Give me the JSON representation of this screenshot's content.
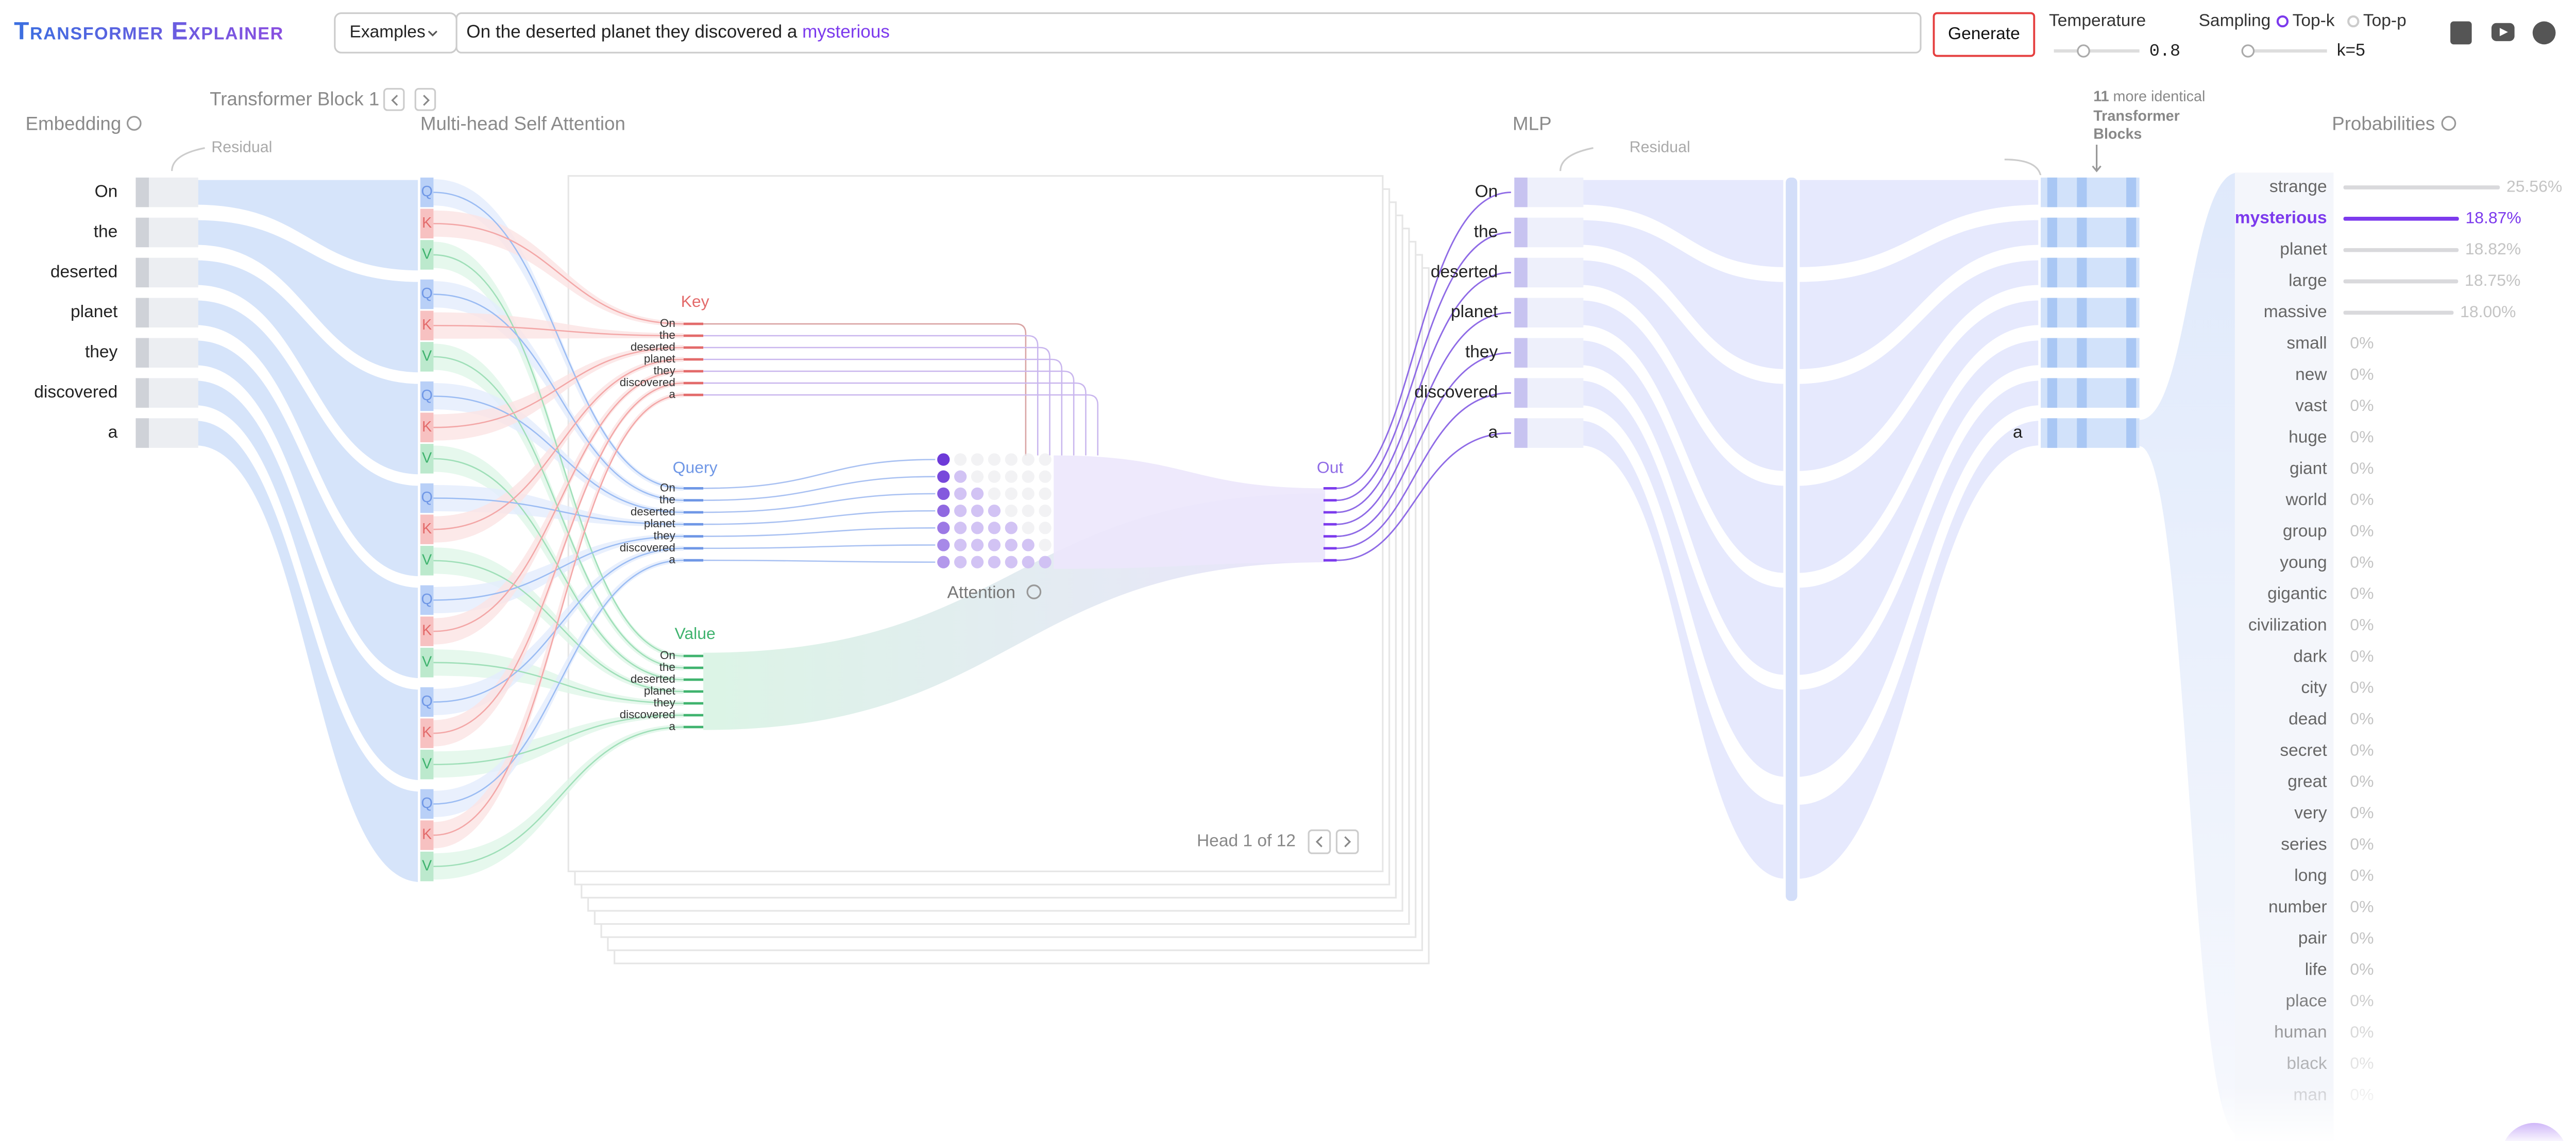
{
  "header": {
    "title": "Transformer Explainer",
    "examples": "Examples",
    "input": {
      "prompt": "On the deserted planet they discovered a",
      "generated": "mysterious"
    },
    "generate": "Generate",
    "temperature": {
      "label": "Temperature",
      "value": 0.8
    },
    "sampling": {
      "label": "Sampling",
      "options": [
        "Top-k",
        "Top-p"
      ],
      "k": "k=5"
    }
  },
  "embedding": {
    "title": "Embedding",
    "residual": "Residual",
    "tokens": [
      "On",
      "the",
      "deserted",
      "planet",
      "they",
      "discovered",
      "a"
    ]
  },
  "block": {
    "title": "Transformer Block 1"
  },
  "attention": {
    "title": "Multi-head Self Attention",
    "qkv": [
      "Q",
      "K",
      "V"
    ],
    "key": "Key",
    "query": "Query",
    "value": "Value",
    "out": "Out",
    "matrix": "Attention",
    "head": "Head 1 of 12"
  },
  "mlp": {
    "title": "MLP",
    "residual": "Residual"
  },
  "more_blocks": {
    "count": "11",
    "text": [
      "more identical",
      "Transformer",
      "Blocks"
    ]
  },
  "probabilities": {
    "title": "Probabilities",
    "tokens": [
      {
        "word": "strange",
        "value": 25.56,
        "label": "25.56%"
      },
      {
        "word": "mysterious",
        "value": 18.87,
        "label": "18.87%"
      },
      {
        "word": "planet",
        "value": 18.82,
        "label": "18.82%"
      },
      {
        "word": "large",
        "value": 18.75,
        "label": "18.75%"
      },
      {
        "word": "massive",
        "value": 18.0,
        "label": "18.00%"
      },
      {
        "word": "small",
        "value": 0,
        "label": "0%"
      },
      {
        "word": "new",
        "value": 0,
        "label": "0%"
      },
      {
        "word": "vast",
        "value": 0,
        "label": "0%"
      },
      {
        "word": "huge",
        "value": 0,
        "label": "0%"
      },
      {
        "word": "giant",
        "value": 0,
        "label": "0%"
      },
      {
        "word": "world",
        "value": 0,
        "label": "0%"
      },
      {
        "word": "group",
        "value": 0,
        "label": "0%"
      },
      {
        "word": "young",
        "value": 0,
        "label": "0%"
      },
      {
        "word": "gigantic",
        "value": 0,
        "label": "0%"
      },
      {
        "word": "civilization",
        "value": 0,
        "label": "0%"
      },
      {
        "word": "dark",
        "value": 0,
        "label": "0%"
      },
      {
        "word": "city",
        "value": 0,
        "label": "0%"
      },
      {
        "word": "dead",
        "value": 0,
        "label": "0%"
      },
      {
        "word": "secret",
        "value": 0,
        "label": "0%"
      },
      {
        "word": "great",
        "value": 0,
        "label": "0%"
      },
      {
        "word": "very",
        "value": 0,
        "label": "0%"
      },
      {
        "word": "series",
        "value": 0,
        "label": "0%"
      },
      {
        "word": "long",
        "value": 0,
        "label": "0%"
      },
      {
        "word": "number",
        "value": 0,
        "label": "0%"
      },
      {
        "word": "pair",
        "value": 0,
        "label": "0%"
      },
      {
        "word": "life",
        "value": 0,
        "label": "0%"
      },
      {
        "word": "place",
        "value": 0,
        "label": "0%"
      },
      {
        "word": "human",
        "value": 0,
        "label": "0%"
      },
      {
        "word": "black",
        "value": 0,
        "label": "0%"
      },
      {
        "word": "man",
        "value": 0,
        "label": "0%"
      }
    ]
  }
}
